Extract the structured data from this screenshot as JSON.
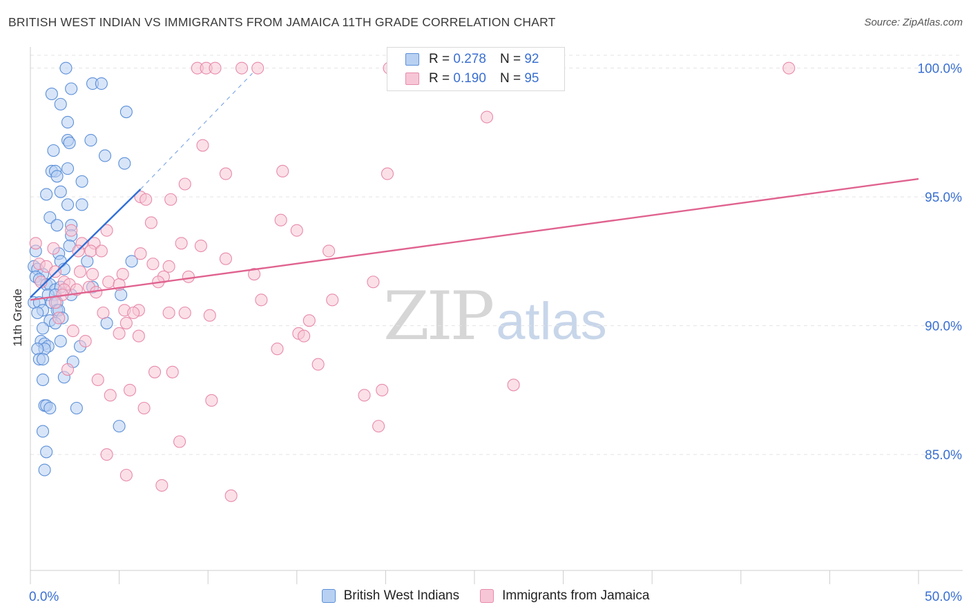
{
  "header": {
    "title": "BRITISH WEST INDIAN VS IMMIGRANTS FROM JAMAICA 11TH GRADE CORRELATION CHART",
    "source": "Source: ZipAtlas.com"
  },
  "legend_top": {
    "rows": [
      {
        "r_label": "R =",
        "r_value": "0.278",
        "n_label": "N =",
        "n_value": "92"
      },
      {
        "r_label": "R =",
        "r_value": "0.190",
        "n_label": "N =",
        "n_value": "95"
      }
    ]
  },
  "legend_bottom": {
    "items": [
      "British West Indians",
      "Immigrants from Jamaica"
    ]
  },
  "watermark": {
    "zip": "ZIP",
    "atlas": "atlas"
  },
  "colors": {
    "blue_fill": "#b8d0f2",
    "blue_stroke": "#5b8fd8",
    "blue_line": "#2f6fd6",
    "pink_fill": "#f7c6d6",
    "pink_stroke": "#e78aa9",
    "pink_line": "#e0628f",
    "tick_label": "#3a6fd0",
    "grid": "#e3e3e3"
  },
  "chart_data": {
    "type": "scatter",
    "title": "BRITISH WEST INDIAN VS IMMIGRANTS FROM JAMAICA 11TH GRADE CORRELATION CHART",
    "xlabel": "",
    "ylabel": "11th Grade",
    "xlim": [
      0,
      50
    ],
    "ylim": [
      80.5,
      100.5
    ],
    "x_tick_labels": [
      "0.0%",
      "50.0%"
    ],
    "y_ticks": [
      85,
      90,
      95,
      100
    ],
    "y_tick_labels": [
      "85.0%",
      "90.0%",
      "95.0%",
      "100.0%"
    ],
    "grid": "horizontal dashed",
    "legend_placement": "top-center and bottom",
    "series": [
      {
        "name": "British West Indians",
        "R": 0.278,
        "N": 92,
        "trend": {
          "x": [
            0.0,
            6.2
          ],
          "y": [
            91.1,
            95.3
          ],
          "dashed_extension": {
            "x": [
              6.2,
              12.5
            ],
            "y": [
              95.3,
              99.8
            ]
          }
        },
        "points": [
          [
            2.0,
            100.0
          ],
          [
            3.5,
            99.4
          ],
          [
            4.0,
            99.4
          ],
          [
            2.3,
            99.2
          ],
          [
            1.2,
            99.0
          ],
          [
            1.7,
            98.6
          ],
          [
            5.4,
            98.3
          ],
          [
            2.1,
            97.9
          ],
          [
            2.1,
            97.2
          ],
          [
            2.2,
            97.1
          ],
          [
            3.4,
            97.2
          ],
          [
            1.3,
            96.8
          ],
          [
            4.2,
            96.6
          ],
          [
            5.3,
            96.3
          ],
          [
            1.2,
            96.0
          ],
          [
            1.4,
            96.0
          ],
          [
            2.1,
            96.1
          ],
          [
            1.5,
            95.8
          ],
          [
            2.9,
            95.6
          ],
          [
            1.7,
            95.2
          ],
          [
            0.9,
            95.1
          ],
          [
            2.1,
            94.7
          ],
          [
            2.9,
            94.7
          ],
          [
            1.1,
            94.2
          ],
          [
            1.5,
            93.9
          ],
          [
            2.3,
            93.9
          ],
          [
            2.3,
            93.5
          ],
          [
            2.2,
            93.1
          ],
          [
            1.6,
            92.8
          ],
          [
            0.3,
            92.9
          ],
          [
            1.7,
            92.5
          ],
          [
            3.2,
            92.5
          ],
          [
            5.7,
            92.5
          ],
          [
            0.2,
            92.3
          ],
          [
            0.4,
            92.2
          ],
          [
            0.7,
            92.0
          ],
          [
            1.9,
            92.2
          ],
          [
            0.3,
            91.9
          ],
          [
            0.5,
            91.8
          ],
          [
            0.9,
            91.6
          ],
          [
            1.1,
            91.6
          ],
          [
            1.4,
            91.4
          ],
          [
            1.7,
            91.5
          ],
          [
            3.5,
            91.5
          ],
          [
            1.0,
            91.2
          ],
          [
            1.4,
            91.2
          ],
          [
            2.3,
            91.2
          ],
          [
            5.1,
            91.2
          ],
          [
            0.2,
            90.9
          ],
          [
            0.5,
            90.9
          ],
          [
            1.2,
            90.9
          ],
          [
            1.5,
            90.9
          ],
          [
            0.7,
            90.6
          ],
          [
            1.5,
            90.6
          ],
          [
            1.6,
            90.6
          ],
          [
            0.4,
            90.5
          ],
          [
            1.8,
            90.3
          ],
          [
            1.1,
            90.2
          ],
          [
            1.4,
            90.1
          ],
          [
            4.3,
            90.1
          ],
          [
            0.7,
            89.9
          ],
          [
            0.6,
            89.4
          ],
          [
            1.7,
            89.4
          ],
          [
            0.8,
            89.3
          ],
          [
            1.0,
            89.2
          ],
          [
            0.8,
            89.1
          ],
          [
            0.4,
            89.1
          ],
          [
            2.8,
            89.2
          ],
          [
            0.5,
            88.7
          ],
          [
            0.7,
            88.7
          ],
          [
            2.4,
            88.6
          ],
          [
            1.9,
            88.0
          ],
          [
            0.7,
            87.9
          ],
          [
            0.8,
            86.9
          ],
          [
            0.9,
            86.9
          ],
          [
            2.6,
            86.8
          ],
          [
            1.1,
            86.8
          ],
          [
            5.0,
            86.1
          ],
          [
            0.7,
            85.9
          ],
          [
            0.9,
            85.1
          ],
          [
            0.8,
            84.4
          ]
        ]
      },
      {
        "name": "Immigrants from Jamaica",
        "R": 0.19,
        "N": 95,
        "trend": {
          "x": [
            0.0,
            50.0
          ],
          "y": [
            91.0,
            95.7
          ]
        },
        "points": [
          [
            9.4,
            100.0
          ],
          [
            9.9,
            100.0
          ],
          [
            10.4,
            100.0
          ],
          [
            11.9,
            100.0
          ],
          [
            12.8,
            100.0
          ],
          [
            20.2,
            100.0
          ],
          [
            42.7,
            100.0
          ],
          [
            25.7,
            98.1
          ],
          [
            9.7,
            97.0
          ],
          [
            14.2,
            96.0
          ],
          [
            11.0,
            95.9
          ],
          [
            20.1,
            95.9
          ],
          [
            8.7,
            95.5
          ],
          [
            6.2,
            95.0
          ],
          [
            6.5,
            94.9
          ],
          [
            7.9,
            94.9
          ],
          [
            14.1,
            94.1
          ],
          [
            6.8,
            94.0
          ],
          [
            15.0,
            93.7
          ],
          [
            4.3,
            93.7
          ],
          [
            2.3,
            93.7
          ],
          [
            0.3,
            93.2
          ],
          [
            3.6,
            93.2
          ],
          [
            2.9,
            93.2
          ],
          [
            8.5,
            93.2
          ],
          [
            9.6,
            93.1
          ],
          [
            1.3,
            93.0
          ],
          [
            2.7,
            92.9
          ],
          [
            3.4,
            92.9
          ],
          [
            4.0,
            92.9
          ],
          [
            6.2,
            92.8
          ],
          [
            16.8,
            92.9
          ],
          [
            11.0,
            92.6
          ],
          [
            0.5,
            92.4
          ],
          [
            0.9,
            92.3
          ],
          [
            1.4,
            92.1
          ],
          [
            2.8,
            92.1
          ],
          [
            6.9,
            92.4
          ],
          [
            7.8,
            92.3
          ],
          [
            3.5,
            92.0
          ],
          [
            5.2,
            92.0
          ],
          [
            12.6,
            92.0
          ],
          [
            7.5,
            91.9
          ],
          [
            8.9,
            91.9
          ],
          [
            0.6,
            91.7
          ],
          [
            1.9,
            91.7
          ],
          [
            2.2,
            91.6
          ],
          [
            3.3,
            91.5
          ],
          [
            4.4,
            91.7
          ],
          [
            5.0,
            91.6
          ],
          [
            7.2,
            91.7
          ],
          [
            19.3,
            91.7
          ],
          [
            1.9,
            91.4
          ],
          [
            2.6,
            91.4
          ],
          [
            3.7,
            91.3
          ],
          [
            1.8,
            91.2
          ],
          [
            13.0,
            91.0
          ],
          [
            17.0,
            91.0
          ],
          [
            1.4,
            90.9
          ],
          [
            5.3,
            90.6
          ],
          [
            6.1,
            90.6
          ],
          [
            4.1,
            90.5
          ],
          [
            5.8,
            90.5
          ],
          [
            7.8,
            90.5
          ],
          [
            8.7,
            90.5
          ],
          [
            10.1,
            90.4
          ],
          [
            1.6,
            90.3
          ],
          [
            15.7,
            90.2
          ],
          [
            5.4,
            90.1
          ],
          [
            2.4,
            89.8
          ],
          [
            5.0,
            89.7
          ],
          [
            15.1,
            89.7
          ],
          [
            6.1,
            89.6
          ],
          [
            15.4,
            89.6
          ],
          [
            3.1,
            89.4
          ],
          [
            13.9,
            89.1
          ],
          [
            16.2,
            88.5
          ],
          [
            2.1,
            88.3
          ],
          [
            7.0,
            88.2
          ],
          [
            8.0,
            88.2
          ],
          [
            3.8,
            87.9
          ],
          [
            5.6,
            87.5
          ],
          [
            4.5,
            87.3
          ],
          [
            18.8,
            87.3
          ],
          [
            19.8,
            87.5
          ],
          [
            27.2,
            87.7
          ],
          [
            10.2,
            87.1
          ],
          [
            6.4,
            86.8
          ],
          [
            19.6,
            86.1
          ],
          [
            8.4,
            85.5
          ],
          [
            4.3,
            85.0
          ],
          [
            5.4,
            84.2
          ],
          [
            7.4,
            83.8
          ],
          [
            11.3,
            83.4
          ]
        ]
      }
    ]
  }
}
